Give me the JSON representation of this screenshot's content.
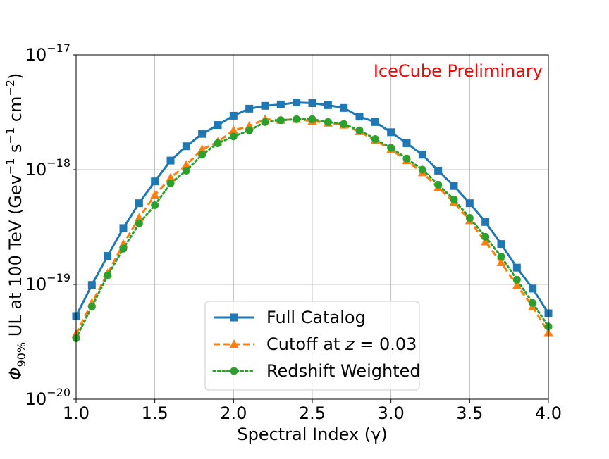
{
  "chart_data": {
    "type": "line",
    "title": "",
    "annotation": "IceCube Preliminary",
    "xlabel": "Spectral Index (γ)",
    "ylabel": {
      "phi": "Φ",
      "phi_sub": "90%",
      "mid": " UL at 100 TeV (Gev",
      "exp1": "−1",
      "s": " s",
      "exp2": "−1",
      "cm": " cm",
      "exp3": "−2",
      "close": ")"
    },
    "xlim": [
      1.0,
      4.0
    ],
    "ylim_log10": [
      -20,
      -17
    ],
    "yscale": "log",
    "grid": true,
    "legend_position": "lower-center",
    "x_ticks": [
      {
        "value": 1.0,
        "label": "1.0"
      },
      {
        "value": 1.5,
        "label": "1.5"
      },
      {
        "value": 2.0,
        "label": "2.0"
      },
      {
        "value": 2.5,
        "label": "2.5"
      },
      {
        "value": 3.0,
        "label": "3.0"
      },
      {
        "value": 3.5,
        "label": "3.5"
      },
      {
        "value": 4.0,
        "label": "4.0"
      }
    ],
    "y_ticks": [
      {
        "exp": -20,
        "base": "10",
        "sup": "−20"
      },
      {
        "exp": -19,
        "base": "10",
        "sup": "−19"
      },
      {
        "exp": -18,
        "base": "10",
        "sup": "−18"
      },
      {
        "exp": -17,
        "base": "10",
        "sup": "−17"
      }
    ],
    "x": [
      1.0,
      1.1,
      1.2,
      1.3,
      1.4,
      1.5,
      1.6,
      1.7,
      1.8,
      1.9,
      2.0,
      2.1,
      2.2,
      2.3,
      2.4,
      2.5,
      2.6,
      2.7,
      2.8,
      2.9,
      3.0,
      3.1,
      3.2,
      3.3,
      3.4,
      3.5,
      3.6,
      3.7,
      3.8,
      3.9,
      4.0
    ],
    "series": [
      {
        "name": "Full Catalog",
        "label": "Full Catalog",
        "color": "#1f77b4",
        "marker": "square",
        "linestyle": "solid",
        "values": [
          5.3e-20,
          9.9e-20,
          1.77e-19,
          3.1e-19,
          5.1e-19,
          7.9e-19,
          1.2e-18,
          1.6e-18,
          2.05e-18,
          2.45e-18,
          2.95e-18,
          3.4e-18,
          3.6e-18,
          3.7e-18,
          3.85e-18,
          3.8e-18,
          3.65e-18,
          3.45e-18,
          2.9e-18,
          2.6e-18,
          2.12e-18,
          1.7e-18,
          1.35e-18,
          9.8e-19,
          7.2e-19,
          5.1e-19,
          3.5e-19,
          2.25e-19,
          1.4e-19,
          9.2e-20,
          5.6e-20
        ]
      },
      {
        "name": "Cutoff",
        "label_prefix": "Cutoff at ",
        "label_var": "z",
        "label_suffix": " = 0.03",
        "color": "#ff7f0e",
        "marker": "triangle",
        "linestyle": "dashed",
        "values": [
          3.7e-20,
          6.9e-20,
          1.25e-19,
          2.25e-19,
          3.8e-19,
          6e-19,
          8.5e-19,
          1.1e-18,
          1.5e-18,
          1.75e-18,
          2.2e-18,
          2.4e-18,
          2.75e-18,
          2.7e-18,
          2.75e-18,
          2.65e-18,
          2.55e-18,
          2.45e-18,
          2.15e-18,
          1.8e-18,
          1.5e-18,
          1.2e-18,
          9.4e-19,
          7e-19,
          5.2e-19,
          3.6e-19,
          2.35e-19,
          1.55e-19,
          9.8e-20,
          6.4e-20,
          3.8e-20
        ]
      },
      {
        "name": "Redshift Weighted",
        "label": "Redshift Weighted",
        "color": "#2ca02c",
        "marker": "circle",
        "linestyle": "dotted",
        "values": [
          3.4e-20,
          6.4e-20,
          1.2e-19,
          2.05e-19,
          3.4e-19,
          4.9e-19,
          7.6e-19,
          9.8e-19,
          1.35e-18,
          1.7e-18,
          1.95e-18,
          2.2e-18,
          2.6e-18,
          2.7e-18,
          2.75e-18,
          2.75e-18,
          2.6e-18,
          2.5e-18,
          2.2e-18,
          1.85e-18,
          1.55e-18,
          1.25e-18,
          1e-18,
          7.4e-19,
          5.5e-19,
          3.8e-19,
          2.6e-19,
          1.75e-19,
          1.1e-19,
          6.9e-20,
          4.3e-20
        ]
      }
    ]
  }
}
